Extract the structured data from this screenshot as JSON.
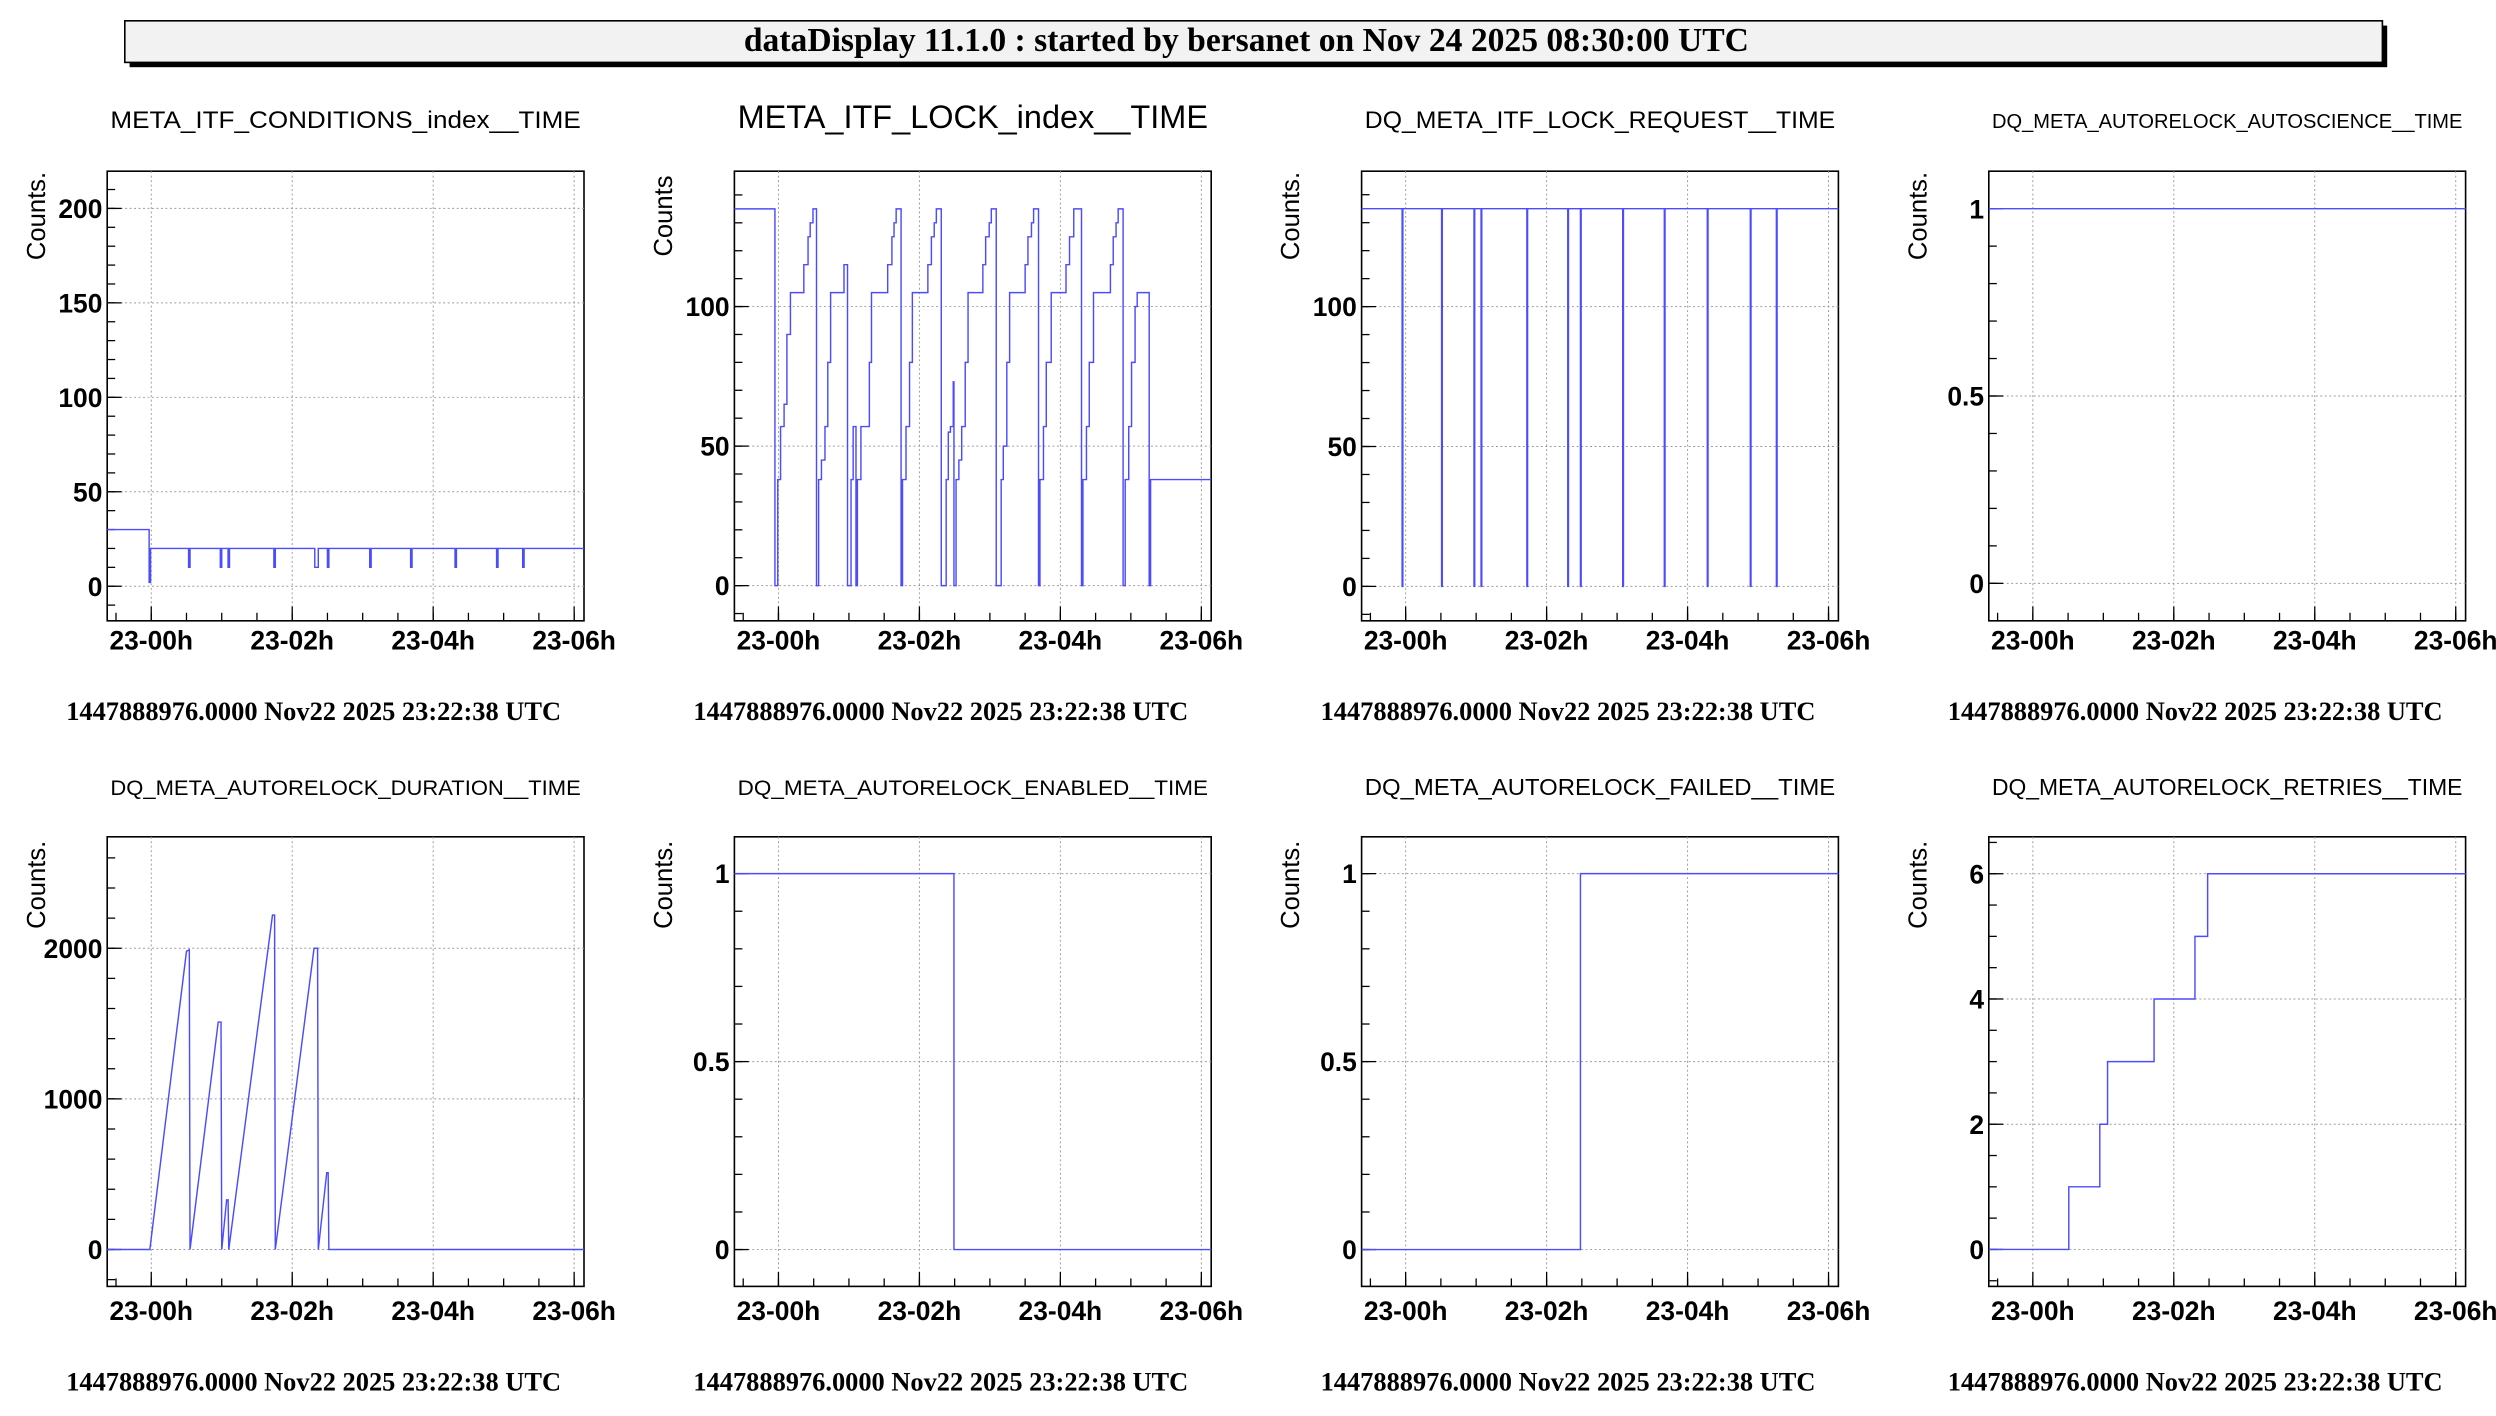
{
  "header": {
    "title": "dataDisplay 11.1.0 : started by bersanet on Nov 24 2025 08:30:00 UTC"
  },
  "chart_data": [
    {
      "type": "line",
      "title": "META_ITF_CONDITIONS_index__TIME",
      "ylabel": "Counts.",
      "xlabel": "",
      "x_unit": "hours after 23:00",
      "xlim": [
        -0.625,
        6.14
      ],
      "ylim": [
        -18.3,
        219.7
      ],
      "xticks": [
        {
          "v": 0,
          "label": "23-00h"
        },
        {
          "v": 2,
          "label": "23-02h"
        },
        {
          "v": 4,
          "label": "23-04h"
        },
        {
          "v": 6,
          "label": "23-06h"
        }
      ],
      "x_minor": 0.5,
      "yticks": [
        {
          "v": 0,
          "label": "0"
        },
        {
          "v": 50,
          "label": "50"
        },
        {
          "v": 100,
          "label": "100"
        },
        {
          "v": 150,
          "label": "150"
        },
        {
          "v": 200,
          "label": "200"
        }
      ],
      "y_minor": 10,
      "grid": true,
      "series": {
        "mode": "steps",
        "points": [
          [
            -0.625,
            30
          ],
          [
            -0.03,
            2
          ],
          [
            -0.01,
            20
          ],
          [
            0.53,
            10
          ],
          [
            0.55,
            20
          ],
          [
            0.98,
            10
          ],
          [
            1.0,
            20
          ],
          [
            1.09,
            10
          ],
          [
            1.11,
            20
          ],
          [
            1.74,
            10
          ],
          [
            1.76,
            20
          ],
          [
            2.32,
            10
          ],
          [
            2.37,
            20
          ],
          [
            2.5,
            10
          ],
          [
            2.52,
            20
          ],
          [
            3.1,
            10
          ],
          [
            3.12,
            20
          ],
          [
            3.68,
            10
          ],
          [
            3.7,
            20
          ],
          [
            4.31,
            10
          ],
          [
            4.33,
            20
          ],
          [
            4.9,
            10
          ],
          [
            4.92,
            20
          ],
          [
            5.27,
            10
          ],
          [
            5.29,
            20
          ]
        ]
      },
      "footer": "1447888976.0000 Nov22 2025 23:22:38 UTC"
    },
    {
      "type": "line",
      "title": "META_ITF_LOCK_index__TIME",
      "ylabel": "Counts",
      "xlabel": "",
      "x_unit": "hours after 23:00",
      "xlim": [
        -0.625,
        6.14
      ],
      "ylim": [
        -12.6,
        148.5
      ],
      "xticks": [
        {
          "v": 0,
          "label": "23-00h"
        },
        {
          "v": 2,
          "label": "23-02h"
        },
        {
          "v": 4,
          "label": "23-04h"
        },
        {
          "v": 6,
          "label": "23-06h"
        }
      ],
      "x_minor": 0.5,
      "yticks": [
        {
          "v": 0,
          "label": "0"
        },
        {
          "v": 50,
          "label": "50"
        },
        {
          "v": 100,
          "label": "100"
        }
      ],
      "y_minor": 10,
      "grid": true,
      "series": {
        "mode": "steps",
        "points": [
          [
            -0.625,
            135
          ],
          [
            -0.05,
            0
          ],
          [
            -0.01,
            38
          ],
          [
            0.03,
            57
          ],
          [
            0.08,
            65
          ],
          [
            0.12,
            90
          ],
          [
            0.17,
            105
          ],
          [
            0.36,
            115
          ],
          [
            0.42,
            125
          ],
          [
            0.45,
            130
          ],
          [
            0.49,
            135
          ],
          [
            0.54,
            0
          ],
          [
            0.57,
            38
          ],
          [
            0.61,
            45
          ],
          [
            0.66,
            57
          ],
          [
            0.7,
            80
          ],
          [
            0.74,
            105
          ],
          [
            0.93,
            115
          ],
          [
            0.98,
            0
          ],
          [
            1.03,
            38
          ],
          [
            1.06,
            57
          ],
          [
            1.1,
            0
          ],
          [
            1.12,
            38
          ],
          [
            1.17,
            57
          ],
          [
            1.29,
            80
          ],
          [
            1.32,
            105
          ],
          [
            1.55,
            115
          ],
          [
            1.61,
            125
          ],
          [
            1.64,
            130
          ],
          [
            1.67,
            135
          ],
          [
            1.74,
            0
          ],
          [
            1.76,
            38
          ],
          [
            1.81,
            57
          ],
          [
            1.86,
            80
          ],
          [
            1.9,
            105
          ],
          [
            2.12,
            115
          ],
          [
            2.17,
            125
          ],
          [
            2.21,
            130
          ],
          [
            2.24,
            135
          ],
          [
            2.31,
            0
          ],
          [
            2.38,
            38
          ],
          [
            2.41,
            55
          ],
          [
            2.44,
            57
          ],
          [
            2.48,
            73
          ],
          [
            2.49,
            0
          ],
          [
            2.52,
            38
          ],
          [
            2.56,
            45
          ],
          [
            2.6,
            57
          ],
          [
            2.65,
            80
          ],
          [
            2.69,
            105
          ],
          [
            2.9,
            115
          ],
          [
            2.94,
            125
          ],
          [
            2.99,
            130
          ],
          [
            3.02,
            135
          ],
          [
            3.09,
            0
          ],
          [
            3.16,
            38
          ],
          [
            3.19,
            50
          ],
          [
            3.24,
            80
          ],
          [
            3.28,
            105
          ],
          [
            3.5,
            115
          ],
          [
            3.54,
            125
          ],
          [
            3.59,
            130
          ],
          [
            3.62,
            135
          ],
          [
            3.69,
            0
          ],
          [
            3.71,
            38
          ],
          [
            3.76,
            57
          ],
          [
            3.8,
            80
          ],
          [
            3.87,
            105
          ],
          [
            4.08,
            115
          ],
          [
            4.13,
            125
          ],
          [
            4.19,
            135
          ],
          [
            4.3,
            0
          ],
          [
            4.32,
            38
          ],
          [
            4.37,
            57
          ],
          [
            4.41,
            80
          ],
          [
            4.47,
            105
          ],
          [
            4.71,
            115
          ],
          [
            4.75,
            125
          ],
          [
            4.79,
            130
          ],
          [
            4.82,
            135
          ],
          [
            4.89,
            0
          ],
          [
            4.92,
            38
          ],
          [
            4.97,
            57
          ],
          [
            5.01,
            80
          ],
          [
            5.06,
            100
          ],
          [
            5.09,
            105
          ],
          [
            5.26,
            0
          ],
          [
            5.28,
            38
          ]
        ]
      },
      "footer": "1447888976.0000 Nov22 2025 23:22:38 UTC"
    },
    {
      "type": "line",
      "title": "DQ_META_ITF_LOCK_REQUEST__TIME",
      "ylabel": "Counts.",
      "xlabel": "",
      "x_unit": "hours after 23:00",
      "xlim": [
        -0.625,
        6.14
      ],
      "ylim": [
        -12.3,
        148.4
      ],
      "xticks": [
        {
          "v": 0,
          "label": "23-00h"
        },
        {
          "v": 2,
          "label": "23-02h"
        },
        {
          "v": 4,
          "label": "23-04h"
        },
        {
          "v": 6,
          "label": "23-06h"
        }
      ],
      "x_minor": 0.5,
      "yticks": [
        {
          "v": 0,
          "label": "0"
        },
        {
          "v": 50,
          "label": "50"
        },
        {
          "v": 100,
          "label": "100"
        }
      ],
      "y_minor": 10,
      "grid": true,
      "series": {
        "mode": "steps",
        "points": [
          [
            -0.625,
            135
          ],
          [
            -0.05,
            0
          ],
          [
            -0.04,
            135
          ],
          [
            0.51,
            0
          ],
          [
            0.52,
            135
          ],
          [
            0.97,
            0
          ],
          [
            0.98,
            135
          ],
          [
            1.07,
            0
          ],
          [
            1.08,
            135
          ],
          [
            1.72,
            0
          ],
          [
            1.73,
            135
          ],
          [
            2.3,
            0
          ],
          [
            2.31,
            135
          ],
          [
            2.48,
            0
          ],
          [
            2.49,
            135
          ],
          [
            3.08,
            0
          ],
          [
            3.09,
            135
          ],
          [
            3.67,
            0
          ],
          [
            3.68,
            135
          ],
          [
            4.28,
            0
          ],
          [
            4.29,
            135
          ],
          [
            4.89,
            0
          ],
          [
            4.9,
            135
          ],
          [
            5.26,
            0
          ],
          [
            5.27,
            135
          ]
        ]
      },
      "footer": "1447888976.0000 Nov22 2025 23:22:38 UTC"
    },
    {
      "type": "line",
      "title": "DQ_META_AUTORELOCK_AUTOSCIENCE__TIME",
      "ylabel": "Counts.",
      "xlabel": "",
      "x_unit": "hours after 23:00",
      "xlim": [
        -0.625,
        6.14
      ],
      "ylim": [
        -0.1,
        1.1
      ],
      "xticks": [
        {
          "v": 0,
          "label": "23-00h"
        },
        {
          "v": 2,
          "label": "23-02h"
        },
        {
          "v": 4,
          "label": "23-04h"
        },
        {
          "v": 6,
          "label": "23-06h"
        }
      ],
      "x_minor": 0.5,
      "yticks": [
        {
          "v": 0,
          "label": "0"
        },
        {
          "v": 0.5,
          "label": "0.5"
        },
        {
          "v": 1,
          "label": "1"
        }
      ],
      "y_minor": 0.1,
      "grid": true,
      "series": {
        "mode": "steps",
        "points": [
          [
            -0.625,
            1
          ]
        ]
      },
      "footer": "1447888976.0000 Nov22 2025 23:22:38 UTC"
    },
    {
      "type": "line",
      "title": "DQ_META_AUTORELOCK_DURATION__TIME",
      "ylabel": "Counts.",
      "xlabel": "",
      "x_unit": "hours after 23:00",
      "xlim": [
        -0.625,
        6.14
      ],
      "ylim": [
        -245,
        2740
      ],
      "xticks": [
        {
          "v": 0,
          "label": "23-00h"
        },
        {
          "v": 2,
          "label": "23-02h"
        },
        {
          "v": 4,
          "label": "23-04h"
        },
        {
          "v": 6,
          "label": "23-06h"
        }
      ],
      "x_minor": 0.5,
      "yticks": [
        {
          "v": 0,
          "label": "0"
        },
        {
          "v": 1000,
          "label": "1000"
        },
        {
          "v": 2000,
          "label": "2000"
        }
      ],
      "y_minor": 200,
      "grid": true,
      "series": {
        "mode": "linear",
        "points": [
          [
            -0.625,
            0
          ],
          [
            -0.02,
            0
          ],
          [
            0.5,
            1980
          ],
          [
            0.54,
            1990
          ],
          [
            0.55,
            0
          ],
          [
            0.95,
            1510
          ],
          [
            0.99,
            1510
          ],
          [
            1.0,
            0
          ],
          [
            1.07,
            330
          ],
          [
            1.09,
            330
          ],
          [
            1.1,
            0
          ],
          [
            1.72,
            2220
          ],
          [
            1.75,
            2220
          ],
          [
            1.76,
            0
          ],
          [
            2.31,
            2000
          ],
          [
            2.36,
            2000
          ],
          [
            2.37,
            0
          ],
          [
            2.49,
            510
          ],
          [
            2.51,
            510
          ],
          [
            2.52,
            0
          ],
          [
            6.14,
            0
          ]
        ]
      },
      "footer": "1447888976.0000 Nov22 2025 23:22:38 UTC"
    },
    {
      "type": "line",
      "title": "DQ_META_AUTORELOCK_ENABLED__TIME",
      "ylabel": "Counts.",
      "xlabel": "",
      "x_unit": "hours after 23:00",
      "xlim": [
        -0.625,
        6.14
      ],
      "ylim": [
        -0.098,
        1.098
      ],
      "xticks": [
        {
          "v": 0,
          "label": "23-00h"
        },
        {
          "v": 2,
          "label": "23-02h"
        },
        {
          "v": 4,
          "label": "23-04h"
        },
        {
          "v": 6,
          "label": "23-06h"
        }
      ],
      "x_minor": 0.5,
      "yticks": [
        {
          "v": 0,
          "label": "0"
        },
        {
          "v": 0.5,
          "label": "0.5"
        },
        {
          "v": 1,
          "label": "1"
        }
      ],
      "y_minor": 0.1,
      "grid": true,
      "series": {
        "mode": "steps",
        "points": [
          [
            -0.625,
            1
          ],
          [
            2.49,
            0
          ]
        ]
      },
      "footer": "1447888976.0000 Nov22 2025 23:22:38 UTC"
    },
    {
      "type": "line",
      "title": "DQ_META_AUTORELOCK_FAILED__TIME",
      "ylabel": "Counts.",
      "xlabel": "",
      "x_unit": "hours after 23:00",
      "xlim": [
        -0.625,
        6.14
      ],
      "ylim": [
        -0.098,
        1.098
      ],
      "xticks": [
        {
          "v": 0,
          "label": "23-00h"
        },
        {
          "v": 2,
          "label": "23-02h"
        },
        {
          "v": 4,
          "label": "23-04h"
        },
        {
          "v": 6,
          "label": "23-06h"
        }
      ],
      "x_minor": 0.5,
      "yticks": [
        {
          "v": 0,
          "label": "0"
        },
        {
          "v": 0.5,
          "label": "0.5"
        },
        {
          "v": 1,
          "label": "1"
        }
      ],
      "y_minor": 0.1,
      "grid": true,
      "series": {
        "mode": "steps",
        "points": [
          [
            -0.625,
            0
          ],
          [
            2.48,
            1
          ]
        ]
      },
      "footer": "1447888976.0000 Nov22 2025 23:22:38 UTC"
    },
    {
      "type": "line",
      "title": "DQ_META_AUTORELOCK_RETRIES__TIME",
      "ylabel": "Counts.",
      "xlabel": "",
      "x_unit": "hours after 23:00",
      "xlim": [
        -0.625,
        6.14
      ],
      "ylim": [
        -0.59,
        6.59
      ],
      "xticks": [
        {
          "v": 0,
          "label": "23-00h"
        },
        {
          "v": 2,
          "label": "23-02h"
        },
        {
          "v": 4,
          "label": "23-04h"
        },
        {
          "v": 6,
          "label": "23-06h"
        }
      ],
      "x_minor": 0.5,
      "yticks": [
        {
          "v": 0,
          "label": "0"
        },
        {
          "v": 2,
          "label": "2"
        },
        {
          "v": 4,
          "label": "4"
        },
        {
          "v": 6,
          "label": "6"
        }
      ],
      "y_minor": 0.5,
      "grid": true,
      "series": {
        "mode": "steps",
        "points": [
          [
            -0.625,
            0
          ],
          [
            0.51,
            1
          ],
          [
            0.95,
            2
          ],
          [
            1.06,
            3
          ],
          [
            1.72,
            4
          ],
          [
            2.3,
            5
          ],
          [
            2.48,
            6
          ]
        ]
      },
      "footer": "1447888976.0000 Nov22 2025 23:22:38 UTC"
    }
  ],
  "colors": {
    "series": "#4c4cff",
    "header_bg": "#f2f2f2"
  }
}
